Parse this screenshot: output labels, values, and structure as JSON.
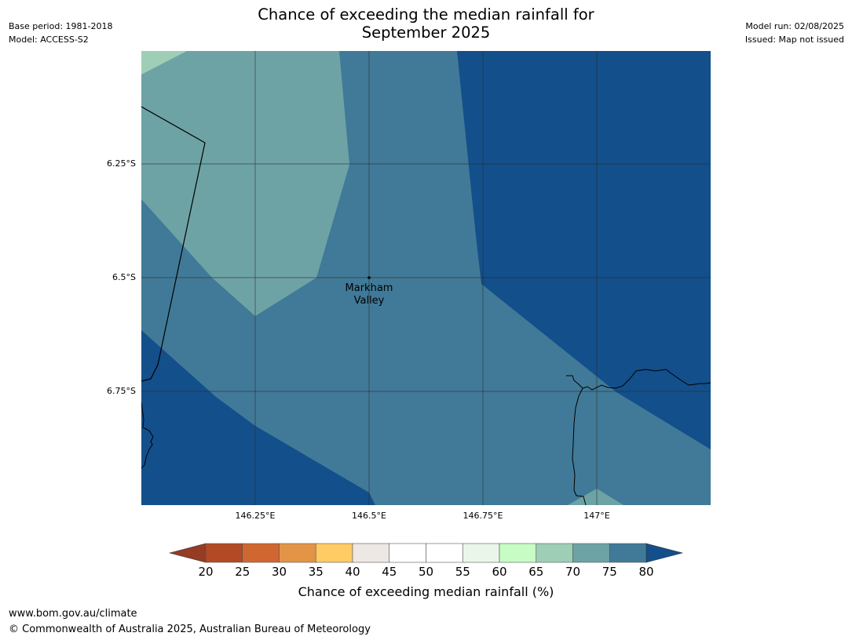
{
  "header": {
    "title_line1": "Chance of exceeding the median rainfall for",
    "title_line2": "September 2025",
    "base_period": "Base period: 1981-2018",
    "model": "Model: ACCESS-S2",
    "model_run": "Model run: 02/08/2025",
    "issued": "Issued: Map not issued"
  },
  "map": {
    "lat_labels": [
      "6.25°S",
      "6.5°S",
      "6.75°S"
    ],
    "lon_labels": [
      "146.25°E",
      "146.5°E",
      "146.75°E",
      "147°E"
    ],
    "place": {
      "name_line1": "Markham",
      "name_line2": "Valley"
    },
    "lon_range": [
      146.0,
      147.25
    ],
    "lat_range": [
      -6.0,
      -7.0
    ],
    "colors": {
      "band_65_70": "#9ecfb6",
      "band_70_75": "#6ea3a5",
      "band_75_80": "#417a98",
      "above_80": "#134f8a",
      "coastline": "#000000",
      "gridline": "#2b2b2b"
    }
  },
  "colorbar": {
    "ticks": [
      "20",
      "25",
      "30",
      "35",
      "40",
      "45",
      "50",
      "55",
      "60",
      "65",
      "70",
      "75",
      "80"
    ],
    "title": "Chance of exceeding median rainfall (%)",
    "under_color": "#963b24",
    "over_color": "#134f8a",
    "bins": [
      {
        "range": "20-25",
        "color": "#b24a26"
      },
      {
        "range": "25-30",
        "color": "#d06730"
      },
      {
        "range": "30-35",
        "color": "#e39447"
      },
      {
        "range": "35-40",
        "color": "#ffcb65"
      },
      {
        "range": "40-45",
        "color": "#ede8e3"
      },
      {
        "range": "45-50",
        "color": "#ffffff"
      },
      {
        "range": "50-55",
        "color": "#ffffff"
      },
      {
        "range": "55-60",
        "color": "#eaf6e9"
      },
      {
        "range": "60-65",
        "color": "#c7fdc5"
      },
      {
        "range": "65-70",
        "color": "#9ecfb6"
      },
      {
        "range": "70-75",
        "color": "#6ea3a5"
      },
      {
        "range": "75-80",
        "color": "#417a98"
      }
    ]
  },
  "footer": {
    "url": "www.bom.gov.au/climate",
    "copyright": "© Commonwealth of Australia 2025, Australian Bureau of Meteorology"
  }
}
